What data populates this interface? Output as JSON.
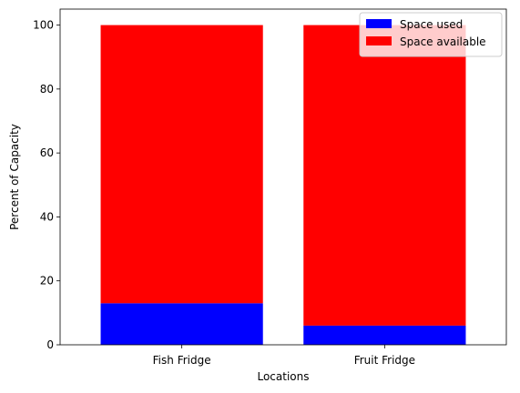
{
  "chart_data": {
    "type": "bar",
    "stacked": true,
    "title": "",
    "xlabel": "Locations",
    "ylabel": "Percent of Capacity",
    "categories": [
      "Fish Fridge",
      "Fruit Fridge"
    ],
    "series": [
      {
        "name": "Space used",
        "values": [
          13,
          6
        ],
        "color": "#0000ff"
      },
      {
        "name": "Space available",
        "values": [
          87,
          94
        ],
        "color": "#ff0000"
      }
    ],
    "ylim": [
      0,
      105
    ],
    "yticks": [
      0,
      20,
      40,
      60,
      80,
      100
    ],
    "grid": false,
    "legend_position": "top-right"
  }
}
